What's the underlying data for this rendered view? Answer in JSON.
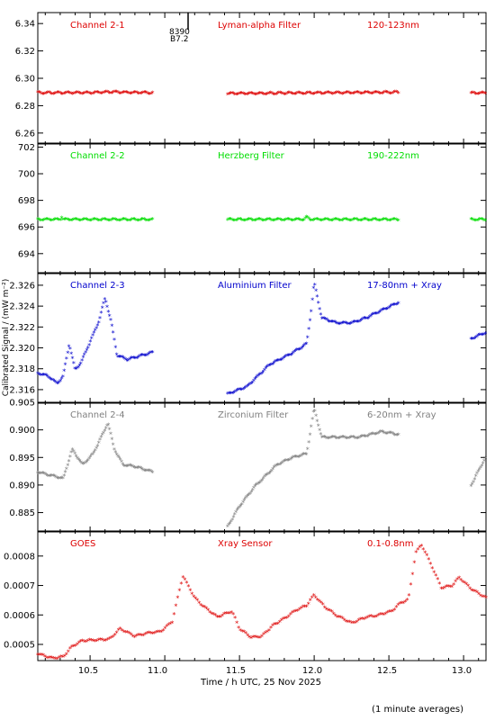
{
  "figure": {
    "xlabel": "Time / h UTC, 25 Nov 2025",
    "ylabel": "Calibrated Signal / (mW m⁻²)",
    "footnote": "(1 minute averages)",
    "x_tick_labels": [
      "10.5",
      "11.0",
      "11.5",
      "12.0",
      "12.5",
      "13.0"
    ],
    "annotation_label_1": "8390",
    "annotation_label_2": "B7.2"
  },
  "chart_data": [
    {
      "type": "scatter",
      "labels": [
        "Channel 2-1",
        "Lyman-alpha Filter",
        "120-123nm"
      ],
      "color": "#dd0000",
      "xlim": [
        10.15,
        13.15
      ],
      "ylim": [
        6.252,
        6.348
      ],
      "yticks": [
        6.26,
        6.28,
        6.3,
        6.32,
        6.34
      ],
      "ytick_labels": [
        "6.26",
        "6.28",
        "6.30",
        "6.32",
        "6.34"
      ],
      "grid": false,
      "x_ranges": [
        [
          10.15,
          10.92
        ],
        [
          11.42,
          12.57
        ],
        [
          13.05,
          13.15
        ]
      ],
      "series": [
        {
          "x": [
            10.15,
            10.5,
            10.6,
            10.65,
            10.75,
            10.92,
            11.42,
            12.0,
            12.57,
            13.05,
            13.15
          ],
          "y": [
            6.2888,
            6.2888,
            6.2892,
            6.2894,
            6.289,
            6.2888,
            6.2882,
            6.2887,
            6.2892,
            6.2886,
            6.2886
          ]
        }
      ]
    },
    {
      "type": "scatter",
      "labels": [
        "Channel 2-2",
        "Herzberg Filter",
        "190-222nm"
      ],
      "color": "#00dd00",
      "xlim": [
        10.15,
        13.15
      ],
      "ylim": [
        692.5,
        702.3
      ],
      "yticks": [
        694,
        696,
        698,
        700,
        702
      ],
      "ytick_labels": [
        "694",
        "696",
        "698",
        "700",
        "702"
      ],
      "grid": false,
      "x_ranges": [
        [
          10.15,
          10.92
        ],
        [
          11.42,
          12.57
        ],
        [
          13.05,
          13.15
        ]
      ],
      "series": [
        {
          "x": [
            10.15,
            10.3,
            10.31,
            10.32,
            10.6,
            10.92,
            11.42,
            11.93,
            11.95,
            11.97,
            12.57,
            13.05,
            13.15
          ],
          "y": [
            696.5,
            696.5,
            696.7,
            696.5,
            696.5,
            696.5,
            696.5,
            696.5,
            696.7,
            696.5,
            696.5,
            696.5,
            696.5
          ]
        }
      ]
    },
    {
      "type": "scatter",
      "labels": [
        "Channel 2-3",
        "Aluminium Filter",
        "17-80nm + Xray"
      ],
      "color": "#0000cc",
      "xlim": [
        10.15,
        13.15
      ],
      "ylim": [
        2.3147,
        2.3272
      ],
      "yticks": [
        2.316,
        2.318,
        2.32,
        2.322,
        2.324,
        2.326
      ],
      "ytick_labels": [
        "2.316",
        "2.318",
        "2.320",
        "2.322",
        "2.324",
        "2.326"
      ],
      "grid": false,
      "x_ranges": [
        [
          10.15,
          10.92
        ],
        [
          11.42,
          12.57
        ],
        [
          13.05,
          13.15
        ]
      ],
      "series": [
        {
          "x": [
            10.15,
            10.22,
            10.28,
            10.32,
            10.36,
            10.4,
            10.44,
            10.5,
            10.56,
            10.6,
            10.64,
            10.68,
            10.75,
            10.85,
            10.92,
            11.42,
            11.55,
            11.7,
            11.85,
            11.95,
            11.98,
            12.0,
            12.05,
            12.15,
            12.25,
            12.35,
            12.45,
            12.57,
            13.05,
            13.15
          ],
          "y": [
            2.3175,
            2.3172,
            2.3165,
            2.3172,
            2.3203,
            2.3178,
            2.3185,
            2.3205,
            2.3225,
            2.3247,
            2.3225,
            2.3192,
            2.3188,
            2.3192,
            2.3195,
            2.3155,
            2.3162,
            2.3183,
            2.3194,
            2.3203,
            2.3235,
            2.3262,
            2.3228,
            2.3223,
            2.3223,
            2.3228,
            2.3235,
            2.3243,
            2.3208,
            2.3214
          ]
        }
      ]
    },
    {
      "type": "scatter",
      "labels": [
        "Channel 2-4",
        "Zirconium Filter",
        "6-20nm + Xray"
      ],
      "color": "#808080",
      "xlim": [
        10.15,
        13.15
      ],
      "ylim": [
        0.8815,
        0.905
      ],
      "yticks": [
        0.885,
        0.89,
        0.895,
        0.9,
        0.905
      ],
      "ytick_labels": [
        "0.885",
        "0.890",
        "0.895",
        "0.900",
        "0.905"
      ],
      "grid": false,
      "x_ranges": [
        [
          10.15,
          10.92
        ],
        [
          11.42,
          12.57
        ],
        [
          13.05,
          13.15
        ]
      ],
      "series": [
        {
          "x": [
            10.15,
            10.25,
            10.32,
            10.38,
            10.45,
            10.52,
            10.58,
            10.62,
            10.66,
            10.72,
            10.8,
            10.92,
            11.42,
            11.5,
            11.6,
            11.75,
            11.85,
            11.95,
            11.98,
            12.0,
            12.05,
            12.15,
            12.3,
            12.45,
            12.57,
            13.05,
            13.15
          ],
          "y": [
            0.8922,
            0.8915,
            0.891,
            0.8963,
            0.8935,
            0.8955,
            0.8988,
            0.9011,
            0.8965,
            0.8935,
            0.8932,
            0.8922,
            0.8823,
            0.886,
            0.8895,
            0.8935,
            0.8948,
            0.8955,
            0.9005,
            0.9037,
            0.8985,
            0.8985,
            0.8985,
            0.8995,
            0.899,
            0.8898,
            0.895
          ]
        }
      ]
    },
    {
      "type": "scatter",
      "labels": [
        "GOES",
        "Xray Sensor",
        "0.1-0.8nm"
      ],
      "color": "#dd0000",
      "xlim": [
        10.15,
        13.15
      ],
      "ylim": [
        0.000445,
        0.000885
      ],
      "yticks": [
        0.0005,
        0.0006,
        0.0007,
        0.0008
      ],
      "ytick_labels": [
        "0.0005",
        "0.0006",
        "0.0007",
        "0.0008"
      ],
      "grid": false,
      "x_ranges": [
        [
          10.15,
          13.15
        ]
      ],
      "series": [
        {
          "x": [
            10.15,
            10.25,
            10.32,
            10.38,
            10.45,
            10.55,
            10.63,
            10.7,
            10.8,
            10.88,
            10.97,
            11.05,
            11.12,
            11.2,
            11.25,
            11.35,
            11.45,
            11.5,
            11.58,
            11.65,
            11.72,
            11.8,
            11.87,
            11.95,
            12.0,
            12.07,
            12.15,
            12.25,
            12.35,
            12.42,
            12.52,
            12.57,
            12.63,
            12.68,
            12.72,
            12.78,
            12.85,
            12.92,
            12.97,
            13.05,
            13.15
          ],
          "y": [
            0.000465,
            0.00045,
            0.000455,
            0.00049,
            0.00051,
            0.000512,
            0.000515,
            0.00055,
            0.000525,
            0.000535,
            0.00054,
            0.000575,
            0.00073,
            0.000655,
            0.00063,
            0.00059,
            0.00061,
            0.00055,
            0.00052,
            0.000525,
            0.00056,
            0.000585,
            0.00061,
            0.00063,
            0.000665,
            0.000625,
            0.000595,
            0.00057,
            0.00059,
            0.000595,
            0.00061,
            0.000635,
            0.00065,
            0.00081,
            0.000835,
            0.00077,
            0.00069,
            0.000695,
            0.000725,
            0.000685,
            0.000655
          ]
        }
      ]
    }
  ]
}
